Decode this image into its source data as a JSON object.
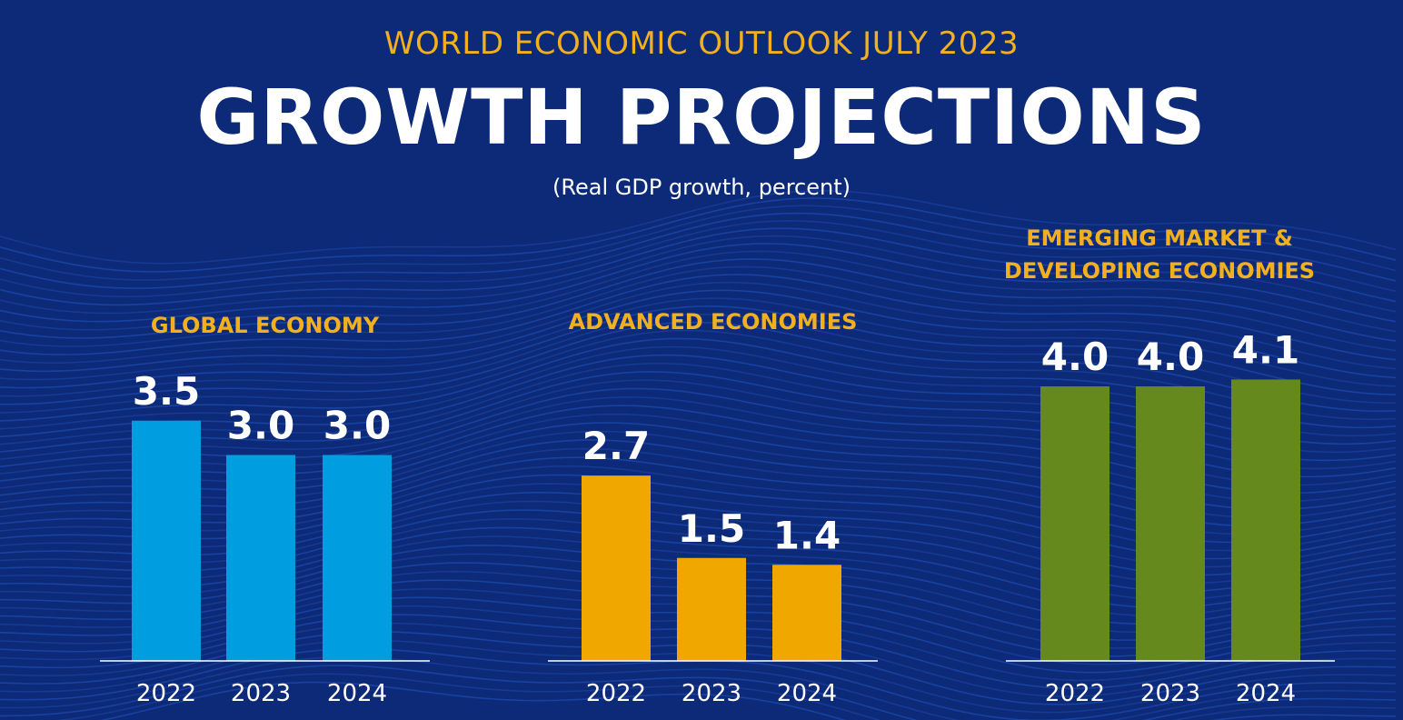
{
  "header": {
    "subtitle": "WORLD ECONOMIC OUTLOOK JULY 2023",
    "title": "GROWTH PROJECTIONS",
    "unit": "(Real GDP growth, percent)"
  },
  "colors": {
    "background": "#0c2a78",
    "accent": "#f2b01e",
    "global": "#009ee0",
    "advanced": "#f0a800",
    "emerging": "#66891e"
  },
  "chart_data": [
    {
      "type": "bar",
      "title": "GLOBAL ECONOMY",
      "categories": [
        "2022",
        "2023",
        "2024"
      ],
      "values": [
        3.5,
        3.0,
        3.0
      ],
      "data_labels": [
        "3.5",
        "3.0",
        "3.0"
      ],
      "color": "#009ee0",
      "ylim": [
        0,
        4.5
      ],
      "grid": false
    },
    {
      "type": "bar",
      "title": "ADVANCED ECONOMIES",
      "categories": [
        "2022",
        "2023",
        "2024"
      ],
      "values": [
        2.7,
        1.5,
        1.4
      ],
      "data_labels": [
        "2.7",
        "1.5",
        "1.4"
      ],
      "color": "#f0a800",
      "ylim": [
        0,
        4.5
      ],
      "grid": false
    },
    {
      "type": "bar",
      "title": "EMERGING MARKET & DEVELOPING ECONOMIES",
      "title_lines": [
        "EMERGING MARKET &",
        "DEVELOPING ECONOMIES"
      ],
      "categories": [
        "2022",
        "2023",
        "2024"
      ],
      "values": [
        4.0,
        4.0,
        4.1
      ],
      "data_labels": [
        "4.0",
        "4.0",
        "4.1"
      ],
      "color": "#66891e",
      "ylim": [
        0,
        4.5
      ],
      "grid": false
    }
  ]
}
